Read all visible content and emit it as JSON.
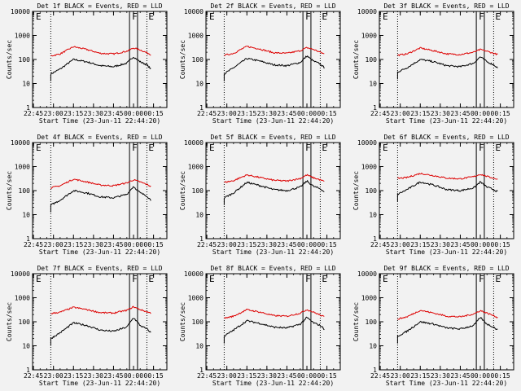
{
  "figure": {
    "background": "#f2f2f2",
    "rows": 3,
    "cols": 3
  },
  "common": {
    "xlabel": "Start Time (23-Jun-11 22:44:20)",
    "ylabel": "Counts/sec",
    "xtick_labels": [
      "22:45",
      "23:00",
      "23:15",
      "23:30",
      "23:45",
      "00:00",
      "00:15"
    ],
    "ytick_labels": [
      "1",
      "10",
      "100",
      "1000",
      "10000"
    ],
    "flag_labels": [
      "E",
      "F",
      "E"
    ],
    "colors": {
      "events": "#000000",
      "lld": "#dd0000"
    }
  },
  "chart_data": [
    {
      "type": "line",
      "title": "Det 1f BLACK = Events, RED = LLD",
      "xlabel": "Start Time (23-Jun-11 22:44:20)",
      "ylabel": "Counts/sec",
      "yscale": "log",
      "ylim": [
        1,
        10000
      ],
      "xlim": [
        "22:44:20",
        "00:25"
      ],
      "x": [
        "22:58",
        "23:05",
        "23:15",
        "23:25",
        "23:35",
        "23:45",
        "23:55",
        "00:00",
        "00:05",
        "00:10",
        "00:13"
      ],
      "series": [
        {
          "name": "Events",
          "values": [
            25,
            40,
            100,
            80,
            55,
            50,
            70,
            130,
            80,
            60,
            40
          ]
        },
        {
          "name": "LLD",
          "values": [
            140,
            170,
            340,
            260,
            180,
            170,
            220,
            300,
            250,
            190,
            160
          ]
        }
      ],
      "vlines_dotted": [
        "22:58",
        "00:10"
      ],
      "vlines_solid": [
        "23:57",
        "00:03"
      ]
    },
    {
      "type": "line",
      "title": "Det 2f BLACK = Events, RED = LLD",
      "xlabel": "Start Time (23-Jun-11 22:44:20)",
      "ylabel": "Counts/sec",
      "yscale": "log",
      "ylim": [
        1,
        10000
      ],
      "xlim": [
        "22:44:20",
        "00:25"
      ],
      "x": [
        "22:58",
        "23:05",
        "23:15",
        "23:25",
        "23:35",
        "23:45",
        "23:55",
        "00:00",
        "00:05",
        "00:10",
        "00:13"
      ],
      "series": [
        {
          "name": "Events",
          "values": [
            25,
            45,
            110,
            85,
            60,
            55,
            75,
            140,
            85,
            65,
            45
          ]
        },
        {
          "name": "LLD",
          "values": [
            150,
            180,
            350,
            270,
            190,
            180,
            230,
            310,
            260,
            200,
            170
          ]
        }
      ],
      "vlines_dotted": [
        "22:58",
        "00:10"
      ],
      "vlines_solid": [
        "23:57",
        "00:03"
      ]
    },
    {
      "type": "line",
      "title": "Det 3f BLACK = Events, RED = LLD",
      "xlabel": "Start Time (23-Jun-11 22:44:20)",
      "ylabel": "Counts/sec",
      "yscale": "log",
      "ylim": [
        1,
        10000
      ],
      "xlim": [
        "22:44:20",
        "00:25"
      ],
      "x": [
        "22:58",
        "23:05",
        "23:15",
        "23:25",
        "23:35",
        "23:45",
        "23:55",
        "00:00",
        "00:05",
        "00:10",
        "00:13"
      ],
      "series": [
        {
          "name": "Events",
          "values": [
            30,
            45,
            100,
            80,
            55,
            50,
            70,
            130,
            80,
            60,
            45
          ]
        },
        {
          "name": "LLD",
          "values": [
            150,
            170,
            300,
            230,
            170,
            160,
            200,
            260,
            220,
            180,
            160
          ]
        }
      ],
      "vlines_dotted": [
        "22:58",
        "00:10"
      ],
      "vlines_solid": [
        "23:57",
        "00:03"
      ]
    },
    {
      "type": "line",
      "title": "Det 4f BLACK = Events, RED = LLD",
      "xlabel": "Start Time (23-Jun-11 22:44:20)",
      "ylabel": "Counts/sec",
      "yscale": "log",
      "ylim": [
        1,
        10000
      ],
      "xlim": [
        "22:44:20",
        "00:25"
      ],
      "x": [
        "22:58",
        "23:05",
        "23:15",
        "23:25",
        "23:35",
        "23:45",
        "23:55",
        "00:00",
        "00:05",
        "00:10",
        "00:13"
      ],
      "series": [
        {
          "name": "Events",
          "values": [
            25,
            40,
            100,
            80,
            55,
            50,
            70,
            150,
            80,
            60,
            40
          ]
        },
        {
          "name": "LLD",
          "values": [
            130,
            160,
            300,
            230,
            170,
            160,
            210,
            280,
            230,
            180,
            150
          ]
        }
      ],
      "vlines_dotted": [
        "22:58",
        "00:10"
      ],
      "vlines_solid": [
        "23:57",
        "00:03"
      ]
    },
    {
      "type": "line",
      "title": "Det 5f BLACK = Events, RED = LLD",
      "xlabel": "Start Time (23-Jun-11 22:44:20)",
      "ylabel": "Counts/sec",
      "yscale": "log",
      "ylim": [
        1,
        10000
      ],
      "xlim": [
        "22:44:20",
        "00:25"
      ],
      "x": [
        "22:58",
        "23:05",
        "23:15",
        "23:25",
        "23:35",
        "23:45",
        "23:55",
        "00:00",
        "00:05",
        "00:10",
        "00:13"
      ],
      "series": [
        {
          "name": "Events",
          "values": [
            50,
            80,
            220,
            160,
            110,
            100,
            140,
            250,
            150,
            120,
            90
          ]
        },
        {
          "name": "LLD",
          "values": [
            220,
            260,
            450,
            350,
            270,
            250,
            320,
            450,
            340,
            280,
            240
          ]
        }
      ],
      "vlines_dotted": [
        "22:58",
        "00:10"
      ],
      "vlines_solid": [
        "23:57",
        "00:03"
      ]
    },
    {
      "type": "line",
      "title": "Det 6f BLACK = Events, RED = LLD",
      "xlabel": "Start Time (23-Jun-11 22:44:20)",
      "ylabel": "Counts/sec",
      "yscale": "log",
      "ylim": [
        1,
        10000
      ],
      "xlim": [
        "22:44:20",
        "00:25"
      ],
      "x": [
        "22:58",
        "23:05",
        "23:15",
        "23:25",
        "23:35",
        "23:45",
        "23:55",
        "00:00",
        "00:05",
        "00:10",
        "00:13"
      ],
      "series": [
        {
          "name": "Events",
          "values": [
            70,
            110,
            230,
            170,
            110,
            100,
            130,
            230,
            140,
            110,
            90
          ]
        },
        {
          "name": "LLD",
          "values": [
            320,
            350,
            520,
            420,
            330,
            310,
            380,
            480,
            390,
            330,
            300
          ]
        }
      ],
      "vlines_dotted": [
        "22:58",
        "00:10"
      ],
      "vlines_solid": [
        "23:57",
        "00:03"
      ]
    },
    {
      "type": "line",
      "title": "Det 7f BLACK = Events, RED = LLD",
      "xlabel": "Start Time (23-Jun-11 22:44:20)",
      "ylabel": "Counts/sec",
      "yscale": "log",
      "ylim": [
        1,
        10000
      ],
      "xlim": [
        "22:44:20",
        "00:25"
      ],
      "x": [
        "22:58",
        "23:05",
        "23:15",
        "23:25",
        "23:35",
        "23:45",
        "23:55",
        "00:00",
        "00:05",
        "00:10",
        "00:13"
      ],
      "series": [
        {
          "name": "Events",
          "values": [
            20,
            35,
            90,
            70,
            45,
            40,
            60,
            150,
            70,
            50,
            35
          ]
        },
        {
          "name": "LLD",
          "values": [
            220,
            250,
            400,
            320,
            240,
            230,
            300,
            420,
            320,
            260,
            230
          ]
        }
      ],
      "vlines_dotted": [
        "22:58",
        "00:10"
      ],
      "vlines_solid": [
        "23:57",
        "00:03"
      ]
    },
    {
      "type": "line",
      "title": "Det 8f BLACK = Events, RED = LLD",
      "xlabel": "Start Time (23-Jun-11 22:44:20)",
      "ylabel": "Counts/sec",
      "yscale": "log",
      "ylim": [
        1,
        10000
      ],
      "xlim": [
        "22:44:20",
        "00:25"
      ],
      "x": [
        "22:58",
        "23:05",
        "23:15",
        "23:25",
        "23:35",
        "23:45",
        "23:55",
        "00:00",
        "00:05",
        "00:10",
        "00:13"
      ],
      "series": [
        {
          "name": "Events",
          "values": [
            25,
            45,
            110,
            85,
            60,
            55,
            80,
            150,
            90,
            70,
            50
          ]
        },
        {
          "name": "LLD",
          "values": [
            140,
            170,
            320,
            250,
            180,
            170,
            230,
            320,
            250,
            190,
            160
          ]
        }
      ],
      "vlines_dotted": [
        "22:58",
        "00:10"
      ],
      "vlines_solid": [
        "23:57",
        "00:03"
      ]
    },
    {
      "type": "line",
      "title": "Det 9f BLACK = Events, RED = LLD",
      "xlabel": "Start Time (23-Jun-11 22:44:20)",
      "ylabel": "Counts/sec",
      "yscale": "log",
      "ylim": [
        1,
        10000
      ],
      "xlim": [
        "22:44:20",
        "00:25"
      ],
      "x": [
        "22:58",
        "23:05",
        "23:15",
        "23:25",
        "23:35",
        "23:45",
        "23:55",
        "00:00",
        "00:05",
        "00:10",
        "00:13"
      ],
      "series": [
        {
          "name": "Events",
          "values": [
            25,
            40,
            100,
            80,
            55,
            50,
            70,
            150,
            80,
            60,
            45
          ]
        },
        {
          "name": "LLD",
          "values": [
            130,
            160,
            300,
            230,
            170,
            160,
            210,
            290,
            230,
            180,
            150
          ]
        }
      ],
      "vlines_dotted": [
        "22:58",
        "00:10"
      ],
      "vlines_solid": [
        "23:57",
        "00:03"
      ]
    }
  ]
}
